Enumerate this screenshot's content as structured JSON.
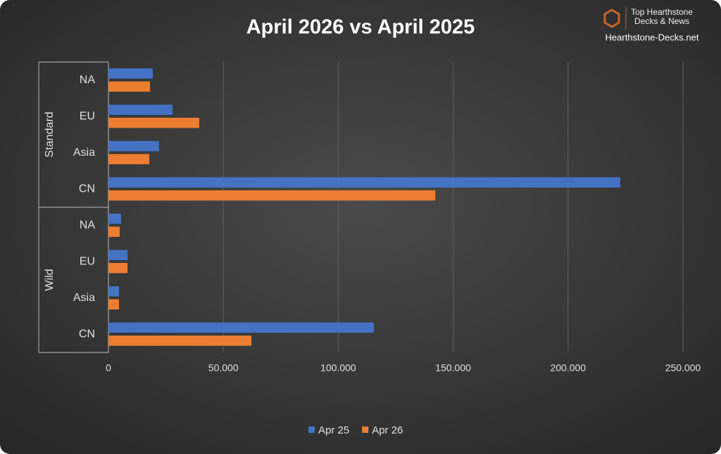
{
  "chart_data": {
    "type": "bar",
    "orientation": "horizontal",
    "title": "April 2026 vs April 2025",
    "groups": [
      {
        "label": "Standard",
        "categories": [
          "NA",
          "EU",
          "Asia",
          "CN"
        ]
      },
      {
        "label": "Wild",
        "categories": [
          "NA",
          "EU",
          "Asia",
          "CN"
        ]
      }
    ],
    "series": [
      {
        "name": "Apr 25",
        "color": "#4472c4",
        "values": [
          19300,
          27900,
          22000,
          222700,
          5500,
          8300,
          4600,
          115500
        ]
      },
      {
        "name": "Apr 26",
        "color": "#ed7d31",
        "values": [
          18100,
          39500,
          17800,
          142200,
          4900,
          8300,
          4600,
          62200
        ]
      }
    ],
    "xlim": [
      0,
      250000
    ],
    "xticks": [
      0,
      {
        "value": 50000,
        "label": "50.000"
      },
      {
        "value": 100000,
        "label": "100.000"
      },
      {
        "value": 150000,
        "label": "150.000"
      },
      {
        "value": 200000,
        "label": "200.000"
      },
      {
        "value": 250000,
        "label": "250.000"
      }
    ],
    "grid": true,
    "legend": "bottom",
    "watermark": {
      "line1": "Top Hearthstone",
      "line2": "Decks & News",
      "site": "Hearthstone-Decks.net"
    }
  }
}
